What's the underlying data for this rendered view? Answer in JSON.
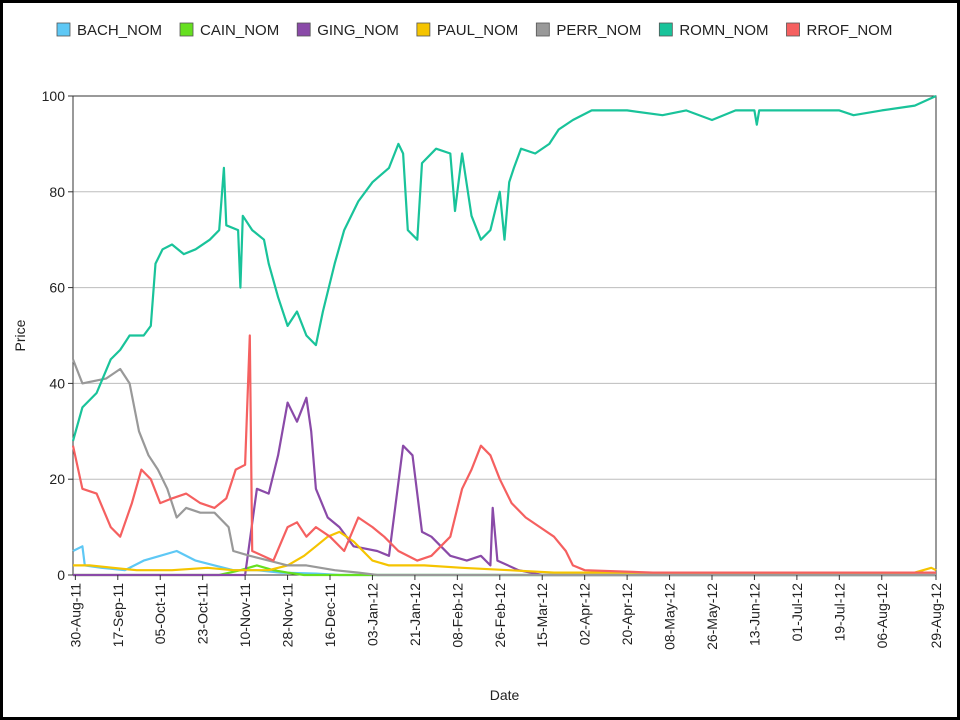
{
  "chart_data": {
    "type": "line",
    "title": "",
    "xlabel": "Date",
    "ylabel": "Price",
    "ylim": [
      0,
      100
    ],
    "yticks": [
      0,
      20,
      40,
      60,
      80,
      100
    ],
    "xlim": [
      "2011-08-29",
      "2012-08-29"
    ],
    "xticks": [
      "2011-08-30",
      "2011-09-17",
      "2011-10-05",
      "2011-10-23",
      "2011-11-10",
      "2011-11-28",
      "2011-12-16",
      "2012-01-03",
      "2012-01-21",
      "2012-02-08",
      "2012-02-26",
      "2012-03-15",
      "2012-04-02",
      "2012-04-20",
      "2012-05-08",
      "2012-05-26",
      "2012-06-13",
      "2012-07-01",
      "2012-07-19",
      "2012-08-06",
      "2012-08-29"
    ],
    "xtick_labels": [
      "30-Aug-11",
      "17-Sep-11",
      "05-Oct-11",
      "23-Oct-11",
      "10-Nov-11",
      "28-Nov-11",
      "16-Dec-11",
      "03-Jan-12",
      "21-Jan-12",
      "08-Feb-12",
      "26-Feb-12",
      "15-Mar-12",
      "02-Apr-12",
      "20-Apr-12",
      "08-May-12",
      "26-May-12",
      "13-Jun-12",
      "01-Jul-12",
      "19-Jul-12",
      "06-Aug-12",
      "29-Aug-12"
    ],
    "grid": "horizontal",
    "legend_position": "top",
    "series": [
      {
        "name": "BACH_NOM",
        "color": "#5ec8f5",
        "points": [
          [
            "2011-08-29",
            5
          ],
          [
            "2011-09-02",
            6
          ],
          [
            "2011-09-03",
            2
          ],
          [
            "2011-09-10",
            1.5
          ],
          [
            "2011-09-20",
            1
          ],
          [
            "2011-09-28",
            3
          ],
          [
            "2011-10-05",
            4
          ],
          [
            "2011-10-12",
            5
          ],
          [
            "2011-10-20",
            3
          ],
          [
            "2011-10-28",
            2
          ],
          [
            "2011-11-05",
            1
          ],
          [
            "2011-11-15",
            1
          ],
          [
            "2011-11-25",
            0.5
          ],
          [
            "2011-12-10",
            0.3
          ],
          [
            "2011-12-20",
            0
          ],
          [
            "2012-08-29",
            0
          ]
        ]
      },
      {
        "name": "CAIN_NOM",
        "color": "#66e020",
        "points": [
          [
            "2011-08-29",
            0
          ],
          [
            "2011-10-30",
            0
          ],
          [
            "2011-11-08",
            1
          ],
          [
            "2011-11-15",
            2
          ],
          [
            "2011-11-22",
            1
          ],
          [
            "2011-11-28",
            0.5
          ],
          [
            "2011-12-05",
            0
          ],
          [
            "2012-08-29",
            0
          ]
        ]
      },
      {
        "name": "GING_NOM",
        "color": "#8a4aa8",
        "points": [
          [
            "2011-08-29",
            0
          ],
          [
            "2011-11-10",
            0
          ],
          [
            "2011-11-15",
            18
          ],
          [
            "2011-11-20",
            17
          ],
          [
            "2011-11-24",
            25
          ],
          [
            "2011-11-28",
            36
          ],
          [
            "2011-12-02",
            32
          ],
          [
            "2011-12-06",
            37
          ],
          [
            "2011-12-08",
            30
          ],
          [
            "2011-12-10",
            18
          ],
          [
            "2011-12-15",
            12
          ],
          [
            "2011-12-20",
            10
          ],
          [
            "2011-12-26",
            6
          ],
          [
            "2012-01-05",
            5
          ],
          [
            "2012-01-10",
            4
          ],
          [
            "2012-01-16",
            27
          ],
          [
            "2012-01-20",
            25
          ],
          [
            "2012-01-24",
            9
          ],
          [
            "2012-01-28",
            8
          ],
          [
            "2012-02-05",
            4
          ],
          [
            "2012-02-12",
            3
          ],
          [
            "2012-02-18",
            4
          ],
          [
            "2012-02-22",
            2
          ],
          [
            "2012-02-23",
            14
          ],
          [
            "2012-02-25",
            3
          ],
          [
            "2012-03-05",
            1
          ],
          [
            "2012-03-15",
            0
          ],
          [
            "2012-08-29",
            0
          ]
        ]
      },
      {
        "name": "PAUL_NOM",
        "color": "#f5c400",
        "points": [
          [
            "2011-08-29",
            2
          ],
          [
            "2011-09-05",
            2
          ],
          [
            "2011-09-15",
            1.5
          ],
          [
            "2011-09-25",
            1
          ],
          [
            "2011-10-10",
            1
          ],
          [
            "2011-10-25",
            1.5
          ],
          [
            "2011-11-05",
            1
          ],
          [
            "2011-11-20",
            1
          ],
          [
            "2011-11-28",
            2
          ],
          [
            "2011-12-05",
            4
          ],
          [
            "2011-12-10",
            6
          ],
          [
            "2011-12-15",
            8
          ],
          [
            "2011-12-20",
            9
          ],
          [
            "2011-12-26",
            7
          ],
          [
            "2012-01-03",
            3
          ],
          [
            "2012-01-10",
            2
          ],
          [
            "2012-01-25",
            2
          ],
          [
            "2012-02-10",
            1.5
          ],
          [
            "2012-03-01",
            1
          ],
          [
            "2012-03-20",
            0.5
          ],
          [
            "2012-05-01",
            0.5
          ],
          [
            "2012-08-20",
            0.5
          ],
          [
            "2012-08-27",
            1.5
          ],
          [
            "2012-08-29",
            1
          ]
        ]
      },
      {
        "name": "PERR_NOM",
        "color": "#999999",
        "points": [
          [
            "2011-08-29",
            45
          ],
          [
            "2011-09-02",
            40
          ],
          [
            "2011-09-12",
            41
          ],
          [
            "2011-09-18",
            43
          ],
          [
            "2011-09-22",
            40
          ],
          [
            "2011-09-26",
            30
          ],
          [
            "2011-09-30",
            25
          ],
          [
            "2011-10-04",
            22
          ],
          [
            "2011-10-08",
            18
          ],
          [
            "2011-10-12",
            12
          ],
          [
            "2011-10-16",
            14
          ],
          [
            "2011-10-22",
            13
          ],
          [
            "2011-10-28",
            13
          ],
          [
            "2011-11-03",
            10
          ],
          [
            "2011-11-05",
            5
          ],
          [
            "2011-11-12",
            4
          ],
          [
            "2011-11-20",
            3
          ],
          [
            "2011-11-28",
            2
          ],
          [
            "2011-12-06",
            2
          ],
          [
            "2011-12-18",
            1
          ],
          [
            "2011-12-28",
            0.5
          ],
          [
            "2012-01-05",
            0
          ],
          [
            "2012-08-29",
            0
          ]
        ]
      },
      {
        "name": "ROMN_NOM",
        "color": "#19c39a",
        "points": [
          [
            "2011-08-29",
            28
          ],
          [
            "2011-09-02",
            35
          ],
          [
            "2011-09-08",
            38
          ],
          [
            "2011-09-14",
            45
          ],
          [
            "2011-09-18",
            47
          ],
          [
            "2011-09-22",
            50
          ],
          [
            "2011-09-28",
            50
          ],
          [
            "2011-10-01",
            52
          ],
          [
            "2011-10-03",
            65
          ],
          [
            "2011-10-06",
            68
          ],
          [
            "2011-10-10",
            69
          ],
          [
            "2011-10-15",
            67
          ],
          [
            "2011-10-20",
            68
          ],
          [
            "2011-10-26",
            70
          ],
          [
            "2011-10-30",
            72
          ],
          [
            "2011-11-01",
            85
          ],
          [
            "2011-11-02",
            73
          ],
          [
            "2011-11-07",
            72
          ],
          [
            "2011-11-08",
            60
          ],
          [
            "2011-11-09",
            75
          ],
          [
            "2011-11-13",
            72
          ],
          [
            "2011-11-18",
            70
          ],
          [
            "2011-11-20",
            65
          ],
          [
            "2011-11-24",
            58
          ],
          [
            "2011-11-28",
            52
          ],
          [
            "2011-12-02",
            55
          ],
          [
            "2011-12-06",
            50
          ],
          [
            "2011-12-10",
            48
          ],
          [
            "2011-12-13",
            55
          ],
          [
            "2011-12-18",
            65
          ],
          [
            "2011-12-22",
            72
          ],
          [
            "2011-12-28",
            78
          ],
          [
            "2012-01-03",
            82
          ],
          [
            "2012-01-10",
            85
          ],
          [
            "2012-01-14",
            90
          ],
          [
            "2012-01-16",
            88
          ],
          [
            "2012-01-18",
            72
          ],
          [
            "2012-01-22",
            70
          ],
          [
            "2012-01-24",
            86
          ],
          [
            "2012-01-30",
            89
          ],
          [
            "2012-02-05",
            88
          ],
          [
            "2012-02-07",
            76
          ],
          [
            "2012-02-10",
            88
          ],
          [
            "2012-02-14",
            75
          ],
          [
            "2012-02-18",
            70
          ],
          [
            "2012-02-22",
            72
          ],
          [
            "2012-02-26",
            80
          ],
          [
            "2012-02-28",
            70
          ],
          [
            "2012-03-01",
            82
          ],
          [
            "2012-03-03",
            85
          ],
          [
            "2012-03-06",
            89
          ],
          [
            "2012-03-12",
            88
          ],
          [
            "2012-03-18",
            90
          ],
          [
            "2012-03-22",
            93
          ],
          [
            "2012-03-28",
            95
          ],
          [
            "2012-04-05",
            97
          ],
          [
            "2012-04-20",
            97
          ],
          [
            "2012-05-05",
            96
          ],
          [
            "2012-05-15",
            97
          ],
          [
            "2012-05-26",
            95
          ],
          [
            "2012-06-05",
            97
          ],
          [
            "2012-06-13",
            97
          ],
          [
            "2012-06-14",
            94
          ],
          [
            "2012-06-15",
            97
          ],
          [
            "2012-07-01",
            97
          ],
          [
            "2012-07-19",
            97
          ],
          [
            "2012-07-25",
            96
          ],
          [
            "2012-08-06",
            97
          ],
          [
            "2012-08-20",
            98
          ],
          [
            "2012-08-29",
            100
          ]
        ]
      },
      {
        "name": "RROF_NOM",
        "color": "#f56060",
        "points": [
          [
            "2011-08-29",
            27
          ],
          [
            "2011-09-02",
            18
          ],
          [
            "2011-09-08",
            17
          ],
          [
            "2011-09-14",
            10
          ],
          [
            "2011-09-18",
            8
          ],
          [
            "2011-09-23",
            15
          ],
          [
            "2011-09-27",
            22
          ],
          [
            "2011-10-01",
            20
          ],
          [
            "2011-10-05",
            15
          ],
          [
            "2011-10-10",
            16
          ],
          [
            "2011-10-16",
            17
          ],
          [
            "2011-10-22",
            15
          ],
          [
            "2011-10-28",
            14
          ],
          [
            "2011-11-02",
            16
          ],
          [
            "2011-11-06",
            22
          ],
          [
            "2011-11-10",
            23
          ],
          [
            "2011-11-12",
            50
          ],
          [
            "2011-11-13",
            5
          ],
          [
            "2011-11-22",
            3
          ],
          [
            "2011-11-28",
            10
          ],
          [
            "2011-12-02",
            11
          ],
          [
            "2011-12-06",
            8
          ],
          [
            "2011-12-10",
            10
          ],
          [
            "2011-12-16",
            8
          ],
          [
            "2011-12-22",
            5
          ],
          [
            "2011-12-28",
            12
          ],
          [
            "2012-01-03",
            10
          ],
          [
            "2012-01-08",
            8
          ],
          [
            "2012-01-14",
            5
          ],
          [
            "2012-01-22",
            3
          ],
          [
            "2012-01-28",
            4
          ],
          [
            "2012-02-05",
            8
          ],
          [
            "2012-02-10",
            18
          ],
          [
            "2012-02-14",
            22
          ],
          [
            "2012-02-18",
            27
          ],
          [
            "2012-02-22",
            25
          ],
          [
            "2012-02-26",
            20
          ],
          [
            "2012-03-02",
            15
          ],
          [
            "2012-03-08",
            12
          ],
          [
            "2012-03-14",
            10
          ],
          [
            "2012-03-20",
            8
          ],
          [
            "2012-03-25",
            5
          ],
          [
            "2012-03-28",
            2
          ],
          [
            "2012-04-02",
            1
          ],
          [
            "2012-05-01",
            0.5
          ],
          [
            "2012-08-29",
            0.5
          ]
        ]
      }
    ]
  }
}
